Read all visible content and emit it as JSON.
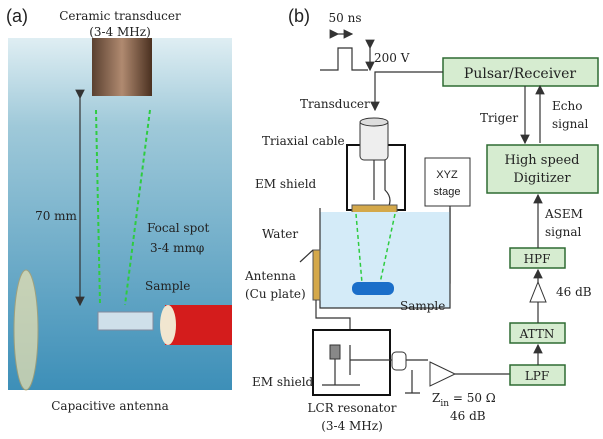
{
  "panel_a": {
    "label": "(a)",
    "transducer": [
      "Ceramic transducer",
      "(3-4 MHz)"
    ],
    "distance": "70 mm",
    "focal_spot": [
      "Focal spot",
      "3-4 mmφ"
    ],
    "sample": "Sample",
    "antenna": "Capacitive antenna"
  },
  "panel_b": {
    "label": "(b)",
    "pulse_width": "50 ns",
    "pulse_voltage": "200 V",
    "pulsar_receiver": "Pulsar/Receiver",
    "transducer": "Transducer",
    "triaxial_cable": "Triaxial cable",
    "trigger": "Triger",
    "echo_signal": [
      "Echo",
      "signal"
    ],
    "em_shield_top": "EM shield",
    "xyz_stage": [
      "XYZ",
      "stage"
    ],
    "digitizer": [
      "High speed",
      "Digitizer"
    ],
    "asem_signal": [
      "ASEM",
      "signal"
    ],
    "water": "Water",
    "hpf": "HPF",
    "amp_gain": "46 dB",
    "antenna": [
      "Antenna",
      "(Cu plate)"
    ],
    "sample": "Sample",
    "attn": "ATTN",
    "lpf": "LPF",
    "em_shield_bottom": "EM shield",
    "impedance": {
      "symbol": "Z",
      "subscript": "in",
      "rest": " = 50 Ω"
    },
    "preamp_gain": "46 dB",
    "lcr_resonator": [
      "LCR resonator",
      "(3-4 MHz)"
    ]
  }
}
